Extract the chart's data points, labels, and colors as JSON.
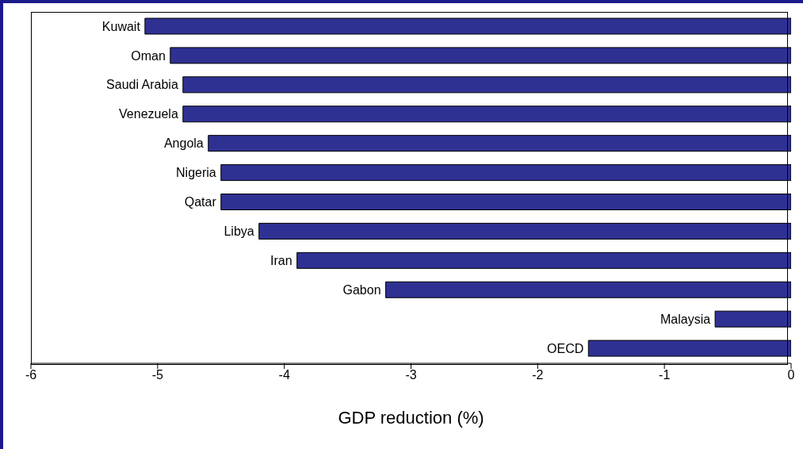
{
  "chart_data": {
    "type": "bar",
    "orientation": "horizontal",
    "xlabel": "GDP reduction (%)",
    "categories": [
      "Kuwait",
      "Oman",
      "Saudi Arabia",
      "Venezuela",
      "Angola",
      "Nigeria",
      "Qatar",
      "Libya",
      "Iran",
      "Gabon",
      "Malaysia",
      "OECD"
    ],
    "values": [
      -5.1,
      -4.9,
      -4.8,
      -4.8,
      -4.6,
      -4.5,
      -4.5,
      -4.2,
      -3.9,
      -3.2,
      -0.6,
      -1.6
    ],
    "color": "#2e3192",
    "xlim": [
      -6,
      0
    ],
    "xticks": [
      -6,
      -5,
      -4,
      -3,
      -2,
      -1,
      0
    ],
    "grid": false,
    "legend": false
  }
}
